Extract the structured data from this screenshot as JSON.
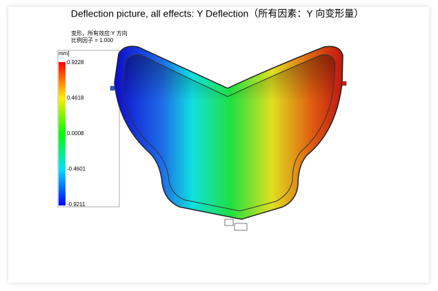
{
  "title": "Deflection picture, all effects: Y Deflection（所有因素：Y 向变形量）",
  "annotation": [
    "变形，所有效应:Y 方向",
    "比例因子 = 1.000"
  ],
  "legend": {
    "unit": "mm]",
    "ticks": [
      "0.9228",
      "0.4618",
      "0.0008",
      "-0.4601",
      "-0.9211"
    ]
  }
}
